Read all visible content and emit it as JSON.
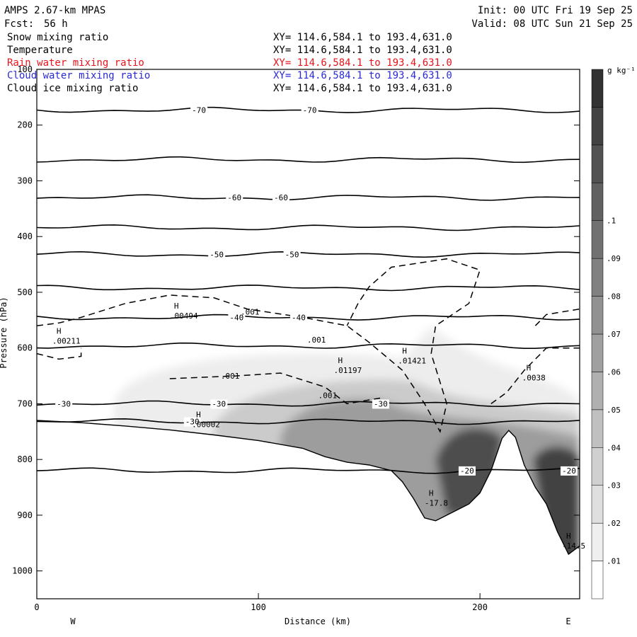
{
  "header": {
    "model": "AMPS 2.67-km MPAS",
    "fcst_label": "Fcst:",
    "fcst_value": "56 h",
    "init": "Init: 00 UTC Fri 19 Sep 25",
    "valid": "Valid: 08 UTC Sun 21 Sep 25"
  },
  "fields": [
    {
      "name": "Snow mixing ratio",
      "xy": "XY= 114.6,584.1 to 193.4,631.0",
      "color": "#000000"
    },
    {
      "name": "Temperature",
      "xy": "XY= 114.6,584.1 to 193.4,631.0",
      "color": "#000000"
    },
    {
      "name": "Rain water mixing ratio",
      "xy": "XY= 114.6,584.1 to 193.4,631.0",
      "color": "#e8141c"
    },
    {
      "name": "Cloud water mixing ratio",
      "xy": "XY= 114.6,584.1 to 193.4,631.0",
      "color": "#2a2ad8"
    },
    {
      "name": "Cloud ice mixing ratio",
      "xy": "XY= 114.6,584.1 to 193.4,631.0",
      "color": "#000000"
    }
  ],
  "chart_data": {
    "type": "area",
    "xlabel": "Distance (km)",
    "ylabel": "Pressure (hPa)",
    "xlim": [
      0,
      245
    ],
    "ylim": [
      1050,
      100
    ],
    "x_ticks": [
      0,
      100,
      200
    ],
    "y_ticks": [
      100,
      200,
      300,
      400,
      500,
      600,
      700,
      800,
      900,
      1000
    ],
    "left_end": "W",
    "right_end": "E",
    "colorbar": {
      "unit": "g kg⁻¹",
      "ticks": [
        ".01",
        ".02",
        ".03",
        ".04",
        ".05",
        ".06",
        ".07",
        ".08",
        ".09",
        ".1"
      ],
      "levels": 14
    },
    "temperature_contours": [
      {
        "label": "-70",
        "p": 173,
        "label_x": [
          70,
          120
        ]
      },
      {
        "label": "",
        "p": 262,
        "label_x": []
      },
      {
        "label": "-60",
        "p": 330,
        "label_x": [
          86,
          107
        ]
      },
      {
        "label": "",
        "p": 384,
        "label_x": []
      },
      {
        "label": "-50",
        "p": 432,
        "label_x": [
          78,
          112
        ]
      },
      {
        "label": "",
        "p": 492,
        "label_x": []
      },
      {
        "label": "-40",
        "p": 545,
        "label_x": [
          87,
          115
        ]
      },
      {
        "label": "",
        "p": 596,
        "label_x": []
      },
      {
        "label": "-30",
        "p": 700,
        "label_x": [
          9,
          79,
          152
        ]
      },
      {
        "label": "-30",
        "p": 732,
        "label_x": [
          67
        ]
      },
      {
        "label": "-20",
        "p": 820,
        "label_x": [
          191,
          237
        ]
      }
    ],
    "ice_contours": [
      {
        "label": ".001",
        "x": 92,
        "p": 540
      },
      {
        "label": ".001",
        "x": 122,
        "p": 590
      },
      {
        "label": ".001",
        "x": 83,
        "p": 655
      },
      {
        "label": ".001",
        "x": 127,
        "p": 690
      }
    ],
    "maxima": [
      {
        "label": ".00211",
        "x": 7,
        "p": 592
      },
      {
        "label": ".00494",
        "x": 60,
        "p": 547
      },
      {
        "label": ".00002",
        "x": 70,
        "p": 742
      },
      {
        "label": ".01197",
        "x": 134,
        "p": 645
      },
      {
        "label": ".01421",
        "x": 163,
        "p": 628
      },
      {
        "label": ".0038",
        "x": 219,
        "p": 658
      },
      {
        "label": "-17.8",
        "x": 175,
        "p": 883
      },
      {
        "label": "-14.5",
        "x": 237,
        "p": 960
      }
    ],
    "terrain": {
      "x": [
        0,
        20,
        40,
        60,
        80,
        100,
        120,
        130,
        140,
        150,
        160,
        165,
        170,
        175,
        180,
        185,
        190,
        195,
        200,
        205,
        210,
        213,
        216,
        220,
        225,
        230,
        235,
        240,
        245
      ],
      "p": [
        730,
        734,
        740,
        747,
        756,
        766,
        780,
        795,
        805,
        810,
        820,
        840,
        870,
        905,
        910,
        900,
        890,
        880,
        860,
        820,
        762,
        748,
        760,
        810,
        850,
        880,
        930,
        970,
        955
      ]
    }
  }
}
